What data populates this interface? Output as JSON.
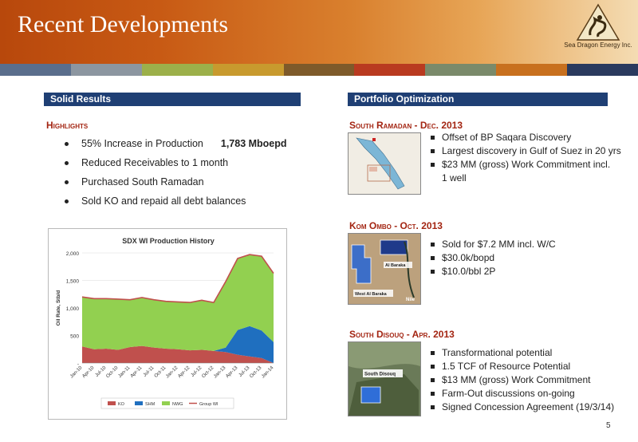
{
  "header": {
    "title": "Recent Developments",
    "company": "Sea Dragon Energy Inc."
  },
  "stripe_colors": [
    "#5a6e8c",
    "#8c96a0",
    "#9cb04a",
    "#c89a2e",
    "#7e5a2a",
    "#b93a20",
    "#7a8a6a",
    "#c8701e",
    "#2a3a5e"
  ],
  "left": {
    "section_title": "Solid Results",
    "highlights_heading": "Highlights",
    "highlights": [
      {
        "text": "55% Increase in Production",
        "value": "1,783 Mboepd"
      },
      {
        "text": "Reduced Receivables to 1 month",
        "value": ""
      },
      {
        "text": "Purchased South Ramadan",
        "value": ""
      },
      {
        "text": "Sold KO and repaid all debt balances",
        "value": ""
      }
    ]
  },
  "right": {
    "section_title": "Portfolio Optimization",
    "blocks": [
      {
        "heading": "South Ramadan - Dec. 2013",
        "map_labels": [],
        "bullets": [
          "Offset of BP Saqara Discovery",
          "Largest discovery in Gulf of Suez in 20 yrs",
          "$23 MM (gross) Work Commitment incl.",
          "1 well"
        ]
      },
      {
        "heading": "Kom Ombo - Oct. 2013",
        "map_labels": [
          "Al Baraka",
          "West Al Baraka",
          "Nile"
        ],
        "bullets": [
          "Sold for $7.2 MM incl. W/C",
          "$30.0k/bopd",
          "$10.0/bbl 2P"
        ]
      },
      {
        "heading": "South Disouq  - Apr. 2013",
        "map_labels": [
          "South Disouq"
        ],
        "bullets": [
          "Transformational potential",
          "1.5 TCF of Resource Potential",
          "$13 MM (gross) Work Commitment",
          "Farm-Out discussions on-going",
          "Signed Concession Agreement (19/3/14)"
        ]
      }
    ]
  },
  "page_number": "5",
  "chart_data": {
    "type": "area",
    "title": "SDX WI Production History",
    "ylabel": "Oil Rate, Stb/d",
    "xlabel": "",
    "ylim": [
      0,
      2000
    ],
    "yticks": [
      0,
      500,
      1000,
      1500,
      2000
    ],
    "ytick_labels": [
      "-",
      "500",
      "1,000",
      "1,500",
      "2,000"
    ],
    "x": [
      "Jan-10",
      "Apr-10",
      "Jul-10",
      "Oct-10",
      "Jan-11",
      "Apr-11",
      "Jul-11",
      "Oct-11",
      "Jan-12",
      "Apr-12",
      "Jul-12",
      "Oct-12",
      "Jan-13",
      "Apr-13",
      "Jul-13",
      "Oct-13",
      "Jan-14"
    ],
    "stacked": true,
    "series": [
      {
        "name": "KO",
        "color": "#c0504d",
        "values": [
          300,
          250,
          260,
          240,
          290,
          310,
          280,
          260,
          250,
          230,
          240,
          220,
          200,
          150,
          120,
          90,
          0
        ]
      },
      {
        "name": "SHM",
        "color": "#1f6fbf",
        "values": [
          0,
          0,
          0,
          0,
          0,
          0,
          0,
          0,
          0,
          0,
          0,
          0,
          80,
          450,
          550,
          500,
          380
        ]
      },
      {
        "name": "NWG",
        "color": "#92d050",
        "values": [
          900,
          920,
          910,
          920,
          860,
          880,
          870,
          860,
          860,
          870,
          900,
          880,
          1200,
          1300,
          1300,
          1350,
          1250
        ]
      }
    ],
    "line": {
      "name": "Group WI",
      "color": "#c0504d",
      "values": [
        1200,
        1170,
        1170,
        1160,
        1150,
        1190,
        1150,
        1120,
        1110,
        1100,
        1140,
        1100,
        1480,
        1900,
        1970,
        1940,
        1630
      ]
    },
    "legend_position": "bottom",
    "grid": true
  }
}
